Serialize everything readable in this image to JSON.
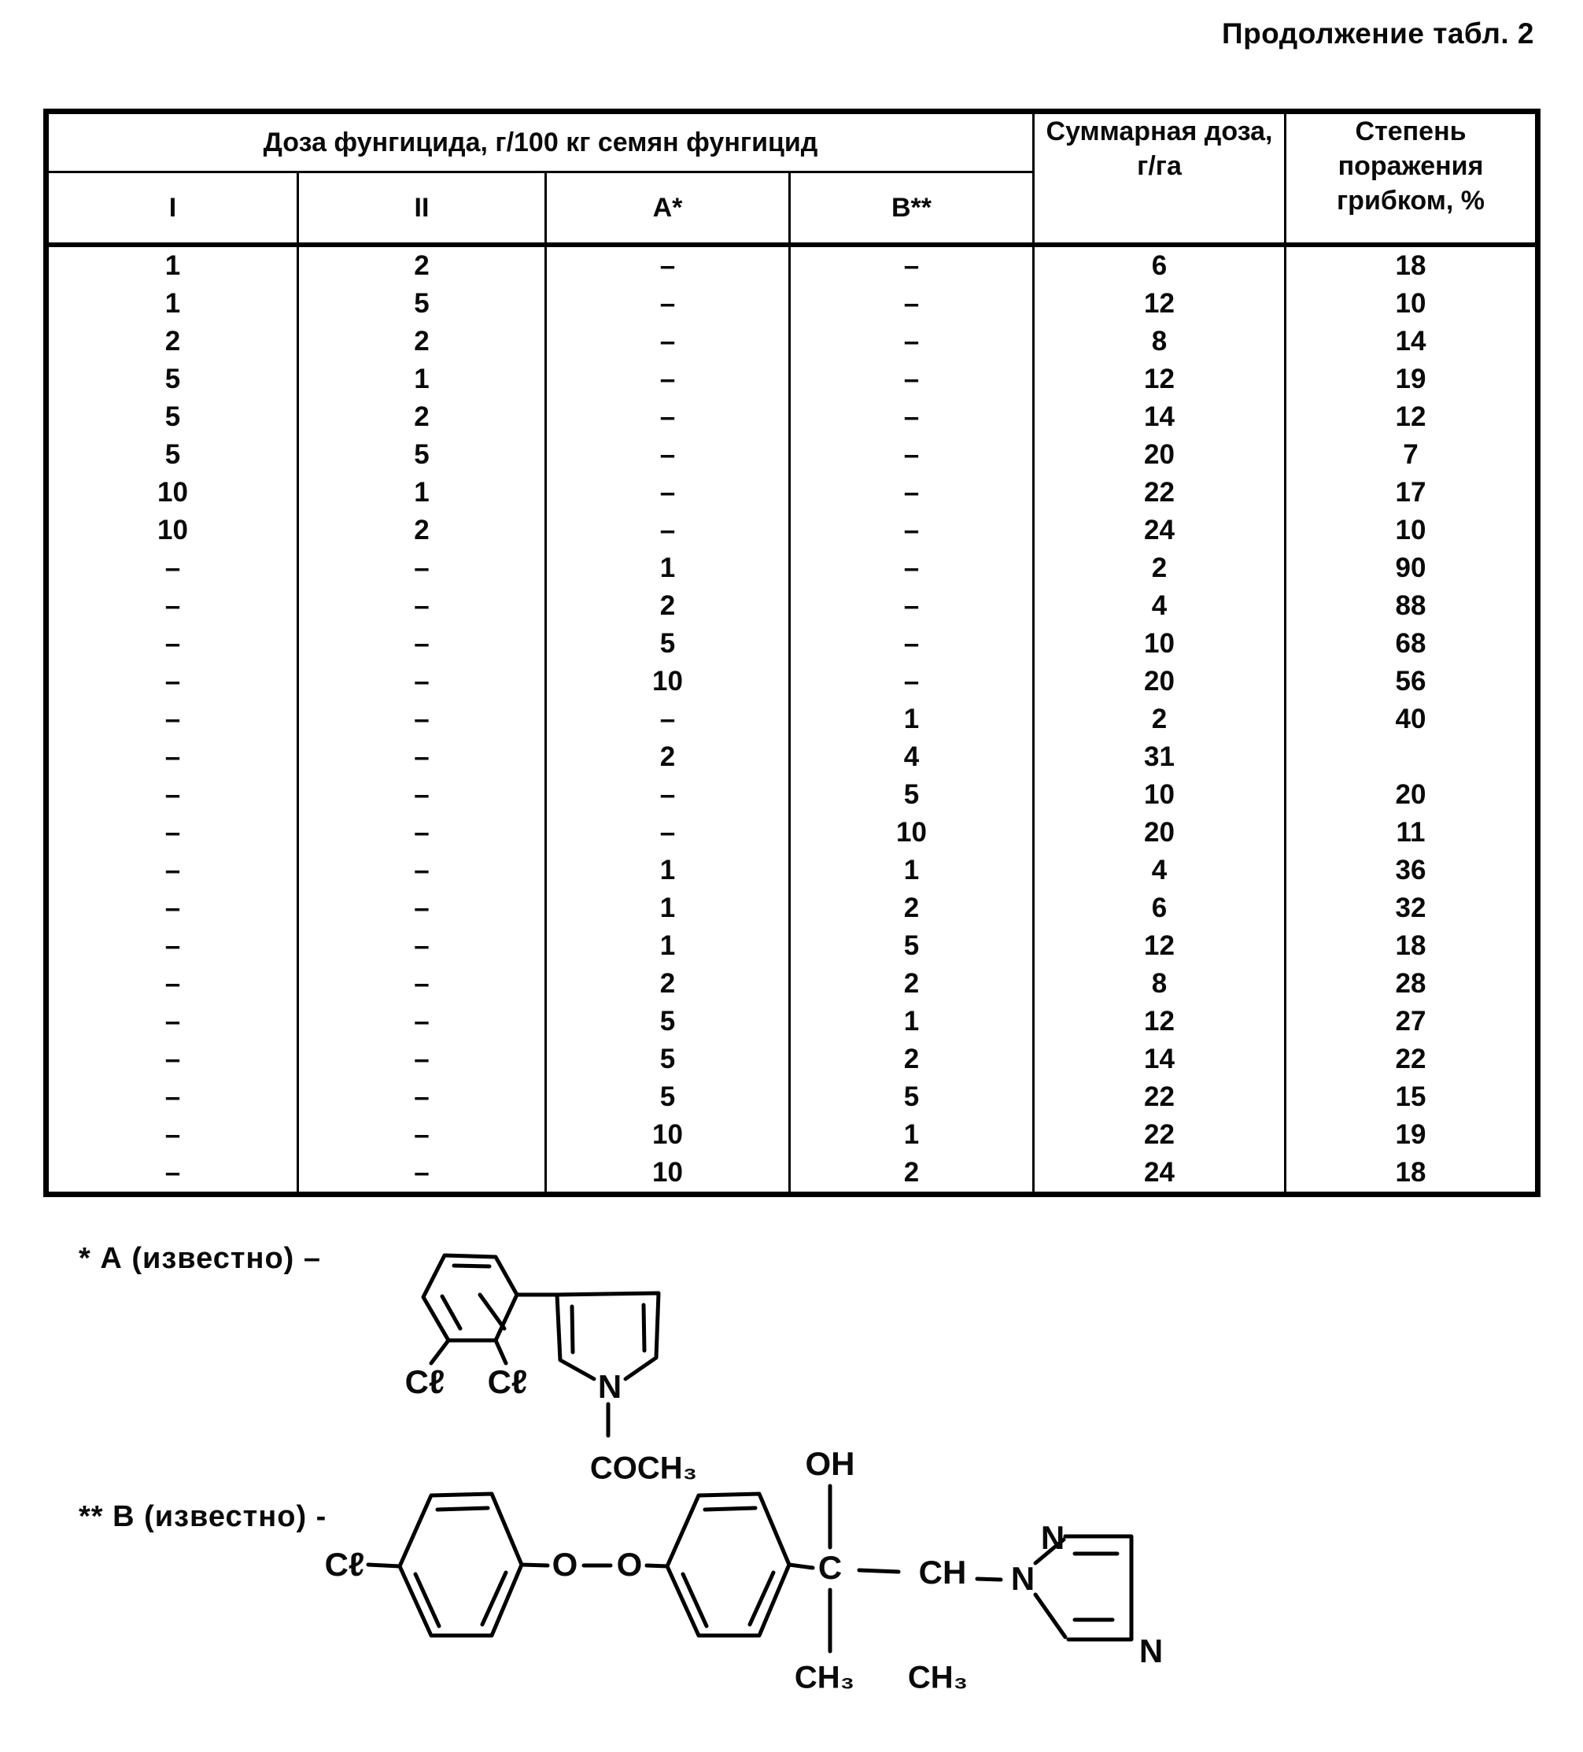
{
  "page": {
    "title": "Продолжение табл. 2"
  },
  "table": {
    "group_header": "Доза фунгицида, г/100 кг семян фунгицид",
    "sub_headers": [
      "I",
      "II",
      "А*",
      "В**"
    ],
    "col_total": "Суммарная доза, г/га",
    "col_degree": "Степень поражения грибком, %",
    "rows": [
      [
        "1",
        "2",
        "–",
        "–",
        "6",
        "18"
      ],
      [
        "1",
        "5",
        "–",
        "–",
        "12",
        "10"
      ],
      [
        "2",
        "2",
        "–",
        "–",
        "8",
        "14"
      ],
      [
        "5",
        "1",
        "–",
        "–",
        "12",
        "19"
      ],
      [
        "5",
        "2",
        "–",
        "–",
        "14",
        "12"
      ],
      [
        "5",
        "5",
        "–",
        "–",
        "20",
        "7"
      ],
      [
        "10",
        "1",
        "–",
        "–",
        "22",
        "17"
      ],
      [
        "10",
        "2",
        "–",
        "–",
        "24",
        "10"
      ],
      [
        "–",
        "–",
        "1",
        "–",
        "2",
        "90"
      ],
      [
        "–",
        "–",
        "2",
        "–",
        "4",
        "88"
      ],
      [
        "–",
        "–",
        "5",
        "–",
        "10",
        "68"
      ],
      [
        "–",
        "–",
        "10",
        "–",
        "20",
        "56"
      ],
      [
        "–",
        "–",
        "–",
        "1",
        "2",
        "40"
      ],
      [
        "–",
        "–",
        "2",
        "4",
        "31",
        ""
      ],
      [
        "–",
        "–",
        "–",
        "5",
        "10",
        "20"
      ],
      [
        "–",
        "–",
        "–",
        "10",
        "20",
        "11"
      ],
      [
        "–",
        "–",
        "1",
        "1",
        "4",
        "36"
      ],
      [
        "–",
        "–",
        "1",
        "2",
        "6",
        "32"
      ],
      [
        "–",
        "–",
        "1",
        "5",
        "12",
        "18"
      ],
      [
        "–",
        "–",
        "2",
        "2",
        "8",
        "28"
      ],
      [
        "–",
        "–",
        "5",
        "1",
        "12",
        "27"
      ],
      [
        "–",
        "–",
        "5",
        "2",
        "14",
        "22"
      ],
      [
        "–",
        "–",
        "5",
        "5",
        "22",
        "15"
      ],
      [
        "–",
        "–",
        "10",
        "1",
        "22",
        "19"
      ],
      [
        "–",
        "–",
        "10",
        "2",
        "24",
        "18"
      ]
    ]
  },
  "footnotes": {
    "a": {
      "label": "* А (известно) –",
      "atoms": {
        "cl1": "Cℓ",
        "cl2": "Cℓ",
        "n": "N",
        "acetyl": "COCH₃"
      }
    },
    "b": {
      "label": "** В (известно) -",
      "atoms": {
        "cl": "Cℓ",
        "o1": "O",
        "o2": "O",
        "oh": "OH",
        "c": "C",
        "ch": "CH",
        "ch3_c": "CH₃",
        "ch3_ch": "CH₃",
        "n1": "N",
        "n2": "N",
        "n3": "N"
      }
    }
  }
}
